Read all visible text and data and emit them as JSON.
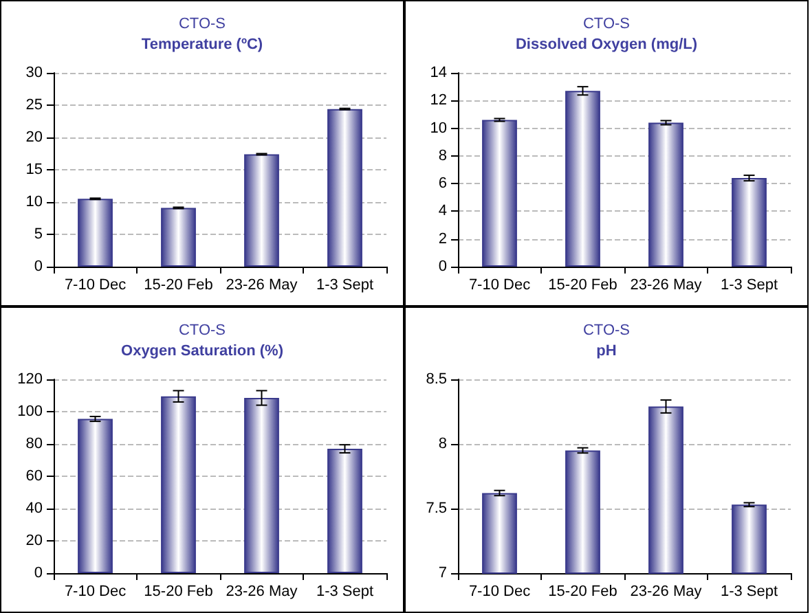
{
  "chart_data": [
    {
      "type": "bar",
      "title": "CTO-S",
      "subtitle": "Temperature (ºC)",
      "categories": [
        "7-10 Dec",
        "15-20 Feb",
        "23-26 May",
        "1-3 Sept"
      ],
      "values": [
        10.5,
        9.1,
        17.4,
        24.4
      ],
      "errors": [
        0.1,
        0.1,
        0.1,
        0.1
      ],
      "color": "#3a3a8c",
      "ylim": [
        0,
        30
      ],
      "yticks": [
        0,
        5,
        10,
        15,
        20,
        25,
        30
      ],
      "grid": "y"
    },
    {
      "type": "bar",
      "title": "CTO-S",
      "subtitle": "Dissolved Oxygen (mg/L)",
      "categories": [
        "7-10 Dec",
        "15-20 Feb",
        "23-26 May",
        "1-3 Sept"
      ],
      "values": [
        10.6,
        12.7,
        10.4,
        6.4
      ],
      "errors": [
        0.1,
        0.3,
        0.15,
        0.2
      ],
      "color": "#3a3a8c",
      "ylim": [
        0,
        14
      ],
      "yticks": [
        0,
        2,
        4,
        6,
        8,
        10,
        12,
        14
      ],
      "grid": "y"
    },
    {
      "type": "bar",
      "title": "CTO-S",
      "subtitle": "Oxygen Saturation (%)",
      "categories": [
        "7-10 Dec",
        "15-20 Feb",
        "23-26 May",
        "1-3 Sept"
      ],
      "values": [
        95.5,
        109.5,
        108.5,
        77
      ],
      "errors": [
        1.5,
        3.5,
        4.5,
        2.5
      ],
      "color": "#3a3a8c",
      "ylim": [
        0,
        120
      ],
      "yticks": [
        0,
        20,
        40,
        60,
        80,
        100,
        120
      ],
      "grid": "y"
    },
    {
      "type": "bar",
      "title": "CTO-S",
      "subtitle": "pH",
      "categories": [
        "7-10 Dec",
        "15-20 Feb",
        "23-26 May",
        "1-3 Sept"
      ],
      "values": [
        7.62,
        7.95,
        8.29,
        7.53
      ],
      "errors": [
        0.02,
        0.02,
        0.05,
        0.015
      ],
      "color": "#3a3a8c",
      "ylim": [
        7,
        8.5
      ],
      "yticks": [
        7,
        7.5,
        8,
        8.5
      ],
      "grid": "y"
    }
  ]
}
